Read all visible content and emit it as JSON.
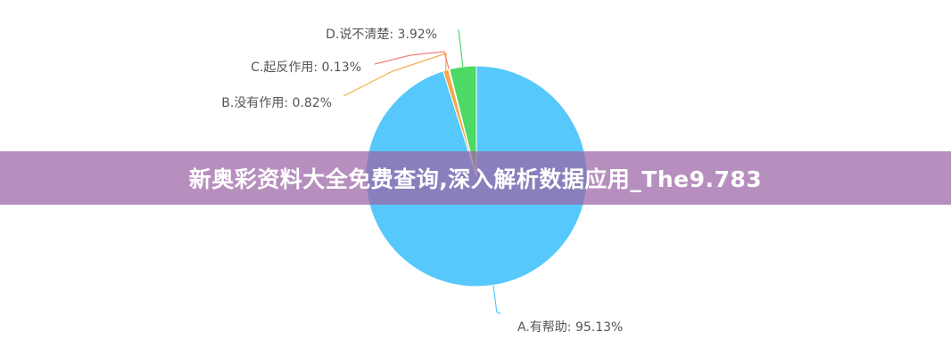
{
  "chart_data": {
    "type": "pie",
    "start": "top",
    "direction": "clockwise",
    "slices": [
      {
        "label": "A.有帮助",
        "value": 95.13,
        "display": "A.有帮助: 95.13%",
        "color": "#56c8fb"
      },
      {
        "label": "B.没有作用",
        "value": 0.82,
        "display": "B.没有作用: 0.82%",
        "color": "#f7a94a"
      },
      {
        "label": "C.起反作用",
        "value": 0.13,
        "display": "C.起反作用: 0.13%",
        "color": "#f08080"
      },
      {
        "label": "D.说不清楚",
        "value": 3.92,
        "display": "D.说不清楚: 3.92%",
        "color": "#4cd964"
      }
    ]
  },
  "banner": {
    "title": "新奥彩资料大全免费查询,深入解析数据应用_The9.783"
  }
}
